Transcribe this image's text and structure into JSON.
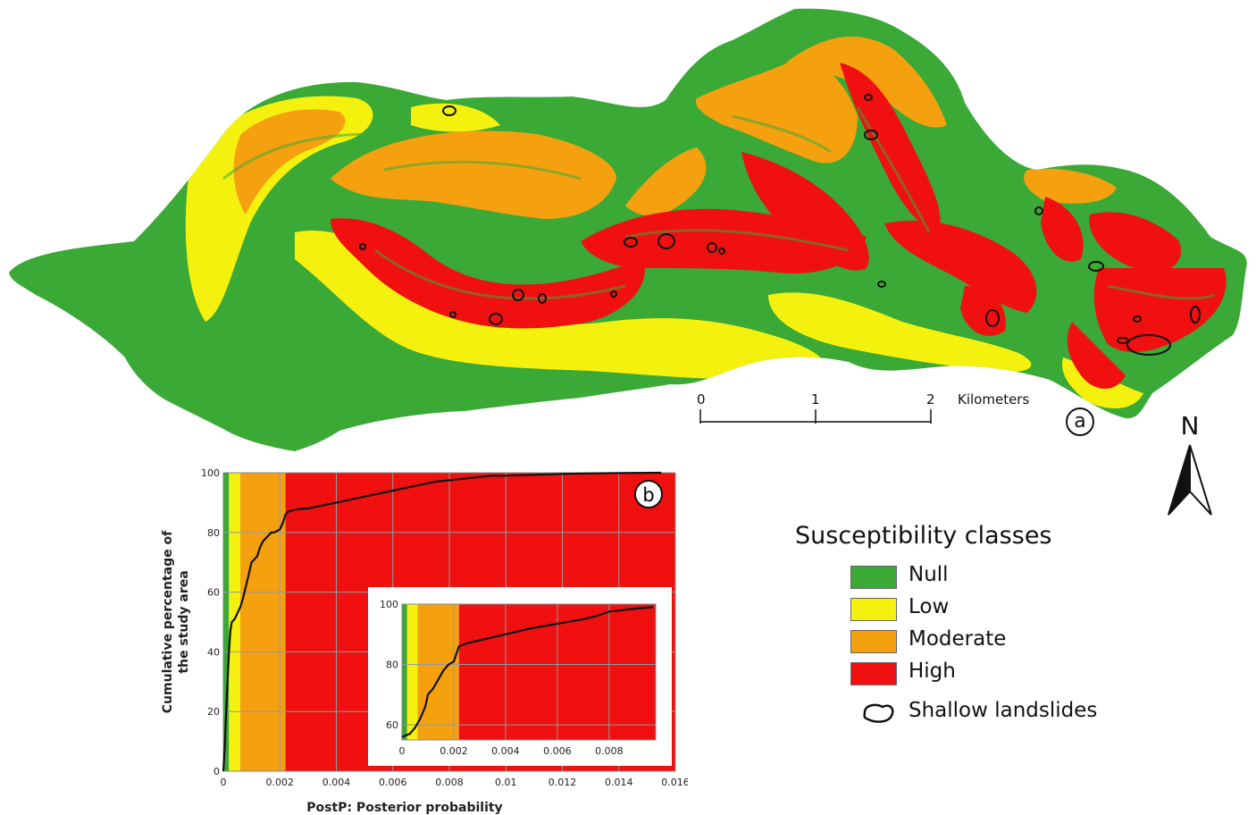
{
  "map": {
    "panel_label": "a",
    "north_label": "N",
    "scale_bar": {
      "ticks": [
        "0",
        "1",
        "2"
      ],
      "unit": "Kilometers"
    }
  },
  "legend": {
    "title": "Susceptibility classes",
    "items": [
      {
        "label": "Null",
        "color": "#3aa935"
      },
      {
        "label": "Low",
        "color": "#f5f10f"
      },
      {
        "label": "Moderate",
        "color": "#f5a10f"
      },
      {
        "label": "High",
        "color": "#f01010"
      }
    ],
    "landslide_label": "Shallow landslides"
  },
  "chart_data": [
    {
      "type": "line",
      "panel_label": "b",
      "xlabel": "PostP: Posterior probability",
      "ylabel": "Cumulative percentage of the study area",
      "xlim": [
        0,
        0.016
      ],
      "ylim": [
        0,
        100
      ],
      "x_ticks": [
        "0",
        "0.002",
        "0.004",
        "0.006",
        "0.008",
        "0.01",
        "0.012",
        "0.014",
        "0.016"
      ],
      "y_ticks": [
        "0",
        "20",
        "40",
        "60",
        "80",
        "100"
      ],
      "grid": true,
      "class_bands": [
        {
          "class": "Null",
          "from": 0,
          "to": 0.0002,
          "color": "#3aa935"
        },
        {
          "class": "Low",
          "from": 0.0002,
          "to": 0.0006,
          "color": "#f5f10f"
        },
        {
          "class": "Moderate",
          "from": 0.0006,
          "to": 0.0022,
          "color": "#f5a10f"
        },
        {
          "class": "High",
          "from": 0.0022,
          "to": 0.016,
          "color": "#f01010"
        }
      ],
      "x": [
        0,
        5e-05,
        0.0001,
        0.00015,
        0.0002,
        0.00025,
        0.0003,
        0.0004,
        0.0005,
        0.0006,
        0.0007,
        0.0008,
        0.0009,
        0.001,
        0.0011,
        0.0012,
        0.0013,
        0.0014,
        0.0015,
        0.0016,
        0.0017,
        0.0018,
        0.0019,
        0.002,
        0.0021,
        0.0022,
        0.0023,
        0.0025,
        0.0028,
        0.003,
        0.0035,
        0.004,
        0.0045,
        0.005,
        0.0055,
        0.006,
        0.0065,
        0.007,
        0.0075,
        0.008,
        0.0085,
        0.009,
        0.0095,
        0.01,
        0.011,
        0.012,
        0.013,
        0.014,
        0.0155
      ],
      "values": [
        0,
        8,
        20,
        30,
        40,
        47,
        50,
        51,
        53,
        55,
        58,
        62,
        66,
        70,
        71,
        72,
        75,
        77,
        78,
        79,
        80,
        80,
        80.5,
        81,
        83,
        86,
        87,
        87.5,
        88,
        88,
        89,
        90,
        91,
        92,
        93,
        94,
        95,
        96,
        97,
        97.5,
        98,
        98.5,
        99,
        99,
        99.3,
        99.6,
        99.8,
        99.9,
        100
      ]
    },
    {
      "type": "line",
      "panel_label": "inset",
      "xlim": [
        0,
        0.0098
      ],
      "ylim": [
        55,
        100
      ],
      "x_ticks": [
        "0",
        "0.002",
        "0.004",
        "0.006",
        "0.008"
      ],
      "y_ticks": [
        "60",
        "80",
        "100"
      ],
      "grid": true,
      "class_bands": [
        {
          "class": "Null",
          "from": 0,
          "to": 0.0002,
          "color": "#3aa935"
        },
        {
          "class": "Low",
          "from": 0.0002,
          "to": 0.0006,
          "color": "#f5f10f"
        },
        {
          "class": "Moderate",
          "from": 0.0006,
          "to": 0.0022,
          "color": "#f5a10f"
        },
        {
          "class": "High",
          "from": 0.0022,
          "to": 0.0098,
          "color": "#f01010"
        }
      ],
      "x": [
        0,
        0.0003,
        0.0005,
        0.0007,
        0.0009,
        0.001,
        0.0012,
        0.0014,
        0.0016,
        0.0018,
        0.002,
        0.0022,
        0.0025,
        0.003,
        0.0035,
        0.004,
        0.005,
        0.006,
        0.007,
        0.0075,
        0.008,
        0.0085,
        0.009,
        0.0097
      ],
      "values": [
        56,
        57,
        59,
        62,
        66,
        70,
        72,
        75,
        78,
        80,
        81,
        86,
        87,
        88,
        89,
        90,
        92,
        93.5,
        95,
        96,
        97.5,
        98,
        98.5,
        99
      ]
    }
  ]
}
